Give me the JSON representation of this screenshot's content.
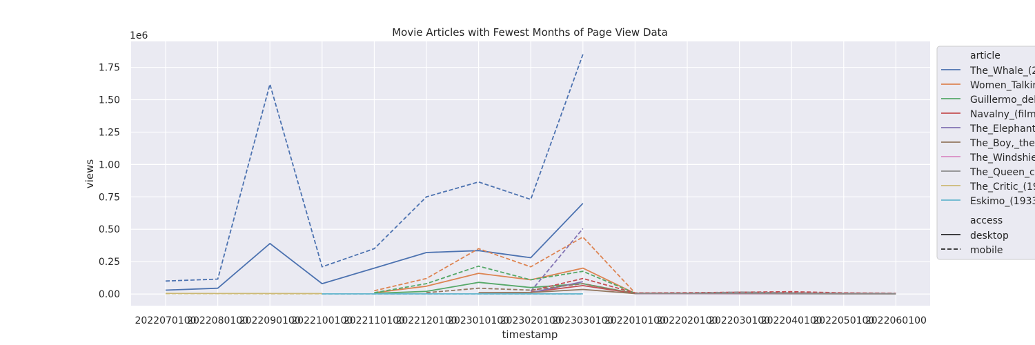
{
  "chart_data": {
    "type": "line",
    "title": "Movie Articles with Fewest Months of Page View Data",
    "xlabel": "timestamp",
    "ylabel": "views",
    "y_multiplier_label": "1e6",
    "categories": [
      "2022070100",
      "2022080100",
      "2022090100",
      "2022100100",
      "2022110100",
      "2022120100",
      "2023010100",
      "2023020100",
      "2023030100",
      "2022010100",
      "2022020100",
      "2022030100",
      "2022040100",
      "2022050100",
      "2022060100"
    ],
    "yticks": [
      "0.00",
      "0.25",
      "0.50",
      "0.75",
      "1.00",
      "1.25",
      "1.50",
      "1.75"
    ],
    "ytick_values": [
      0,
      250000,
      500000,
      750000,
      1000000,
      1250000,
      1500000,
      1750000
    ],
    "ylim": [
      -90000,
      1950000
    ],
    "grid": true,
    "legend_placement": "outside-right",
    "legend": {
      "hue_title": "article",
      "style_title": "access",
      "articles": [
        {
          "name": "The_Whale_(2",
          "color": "#4c72b0"
        },
        {
          "name": "Women_Talkir",
          "color": "#dd8452"
        },
        {
          "name": "Guillermo_del",
          "color": "#55a868"
        },
        {
          "name": "Navalny_(film",
          "color": "#c44e52"
        },
        {
          "name": "The_Elephant",
          "color": "#8172b3"
        },
        {
          "name": "The_Boy,_the",
          "color": "#937860"
        },
        {
          "name": "The_Windshie",
          "color": "#da8bc3"
        },
        {
          "name": "The_Queen_c",
          "color": "#8c8c8c"
        },
        {
          "name": "The_Critic_(19",
          "color": "#ccb974"
        },
        {
          "name": "Eskimo_(1933",
          "color": "#64b5cd"
        }
      ],
      "access": [
        {
          "name": "desktop",
          "dash": "solid"
        },
        {
          "name": "mobile",
          "dash": "dashed"
        }
      ]
    },
    "series": [
      {
        "article": "The_Whale_(2",
        "access": "desktop",
        "color": "#4c72b0",
        "dash": false,
        "points": [
          [
            0,
            30000
          ],
          [
            1,
            45000
          ],
          [
            2,
            390000
          ],
          [
            3,
            80000
          ],
          [
            4,
            200000
          ],
          [
            5,
            320000
          ],
          [
            6,
            335000
          ],
          [
            7,
            280000
          ],
          [
            8,
            700000
          ]
        ]
      },
      {
        "article": "The_Whale_(2",
        "access": "mobile",
        "color": "#4c72b0",
        "dash": true,
        "points": [
          [
            0,
            100000
          ],
          [
            1,
            115000
          ],
          [
            2,
            1620000
          ],
          [
            3,
            210000
          ],
          [
            4,
            350000
          ],
          [
            5,
            750000
          ],
          [
            6,
            865000
          ],
          [
            7,
            730000
          ],
          [
            8,
            1850000
          ]
        ]
      },
      {
        "article": "Women_Talkir",
        "access": "desktop",
        "color": "#dd8452",
        "dash": false,
        "points": [
          [
            4,
            10000
          ],
          [
            5,
            60000
          ],
          [
            6,
            160000
          ],
          [
            7,
            110000
          ],
          [
            8,
            200000
          ],
          [
            9,
            5000
          ],
          [
            10,
            4000
          ],
          [
            11,
            3000
          ],
          [
            12,
            3000
          ],
          [
            13,
            2000
          ],
          [
            14,
            2000
          ]
        ]
      },
      {
        "article": "Women_Talkir",
        "access": "mobile",
        "color": "#dd8452",
        "dash": true,
        "points": [
          [
            4,
            25000
          ],
          [
            5,
            120000
          ],
          [
            6,
            350000
          ],
          [
            7,
            210000
          ],
          [
            8,
            440000
          ],
          [
            9,
            8000
          ],
          [
            10,
            6000
          ],
          [
            11,
            5000
          ],
          [
            12,
            4000
          ],
          [
            13,
            4000
          ],
          [
            14,
            3000
          ]
        ]
      },
      {
        "article": "Guillermo_del",
        "access": "desktop",
        "color": "#55a868",
        "dash": false,
        "points": [
          [
            4,
            5000
          ],
          [
            5,
            20000
          ],
          [
            6,
            90000
          ],
          [
            7,
            50000
          ],
          [
            8,
            80000
          ],
          [
            9,
            4000
          ],
          [
            10,
            3000
          ],
          [
            11,
            3000
          ],
          [
            12,
            2000
          ],
          [
            13,
            2000
          ],
          [
            14,
            2000
          ]
        ]
      },
      {
        "article": "Guillermo_del",
        "access": "mobile",
        "color": "#55a868",
        "dash": true,
        "points": [
          [
            4,
            10000
          ],
          [
            5,
            80000
          ],
          [
            6,
            215000
          ],
          [
            7,
            110000
          ],
          [
            8,
            175000
          ],
          [
            9,
            6000
          ],
          [
            10,
            5000
          ],
          [
            11,
            4000
          ],
          [
            12,
            3000
          ],
          [
            13,
            3000
          ],
          [
            14,
            2000
          ]
        ]
      },
      {
        "article": "Navalny_(film",
        "access": "desktop",
        "color": "#c44e52",
        "dash": false,
        "points": [
          [
            7,
            15000
          ],
          [
            8,
            65000
          ],
          [
            9,
            5000
          ],
          [
            10,
            6000
          ],
          [
            11,
            8000
          ],
          [
            12,
            9000
          ],
          [
            13,
            5000
          ],
          [
            14,
            4000
          ]
        ]
      },
      {
        "article": "Navalny_(film",
        "access": "mobile",
        "color": "#c44e52",
        "dash": true,
        "points": [
          [
            7,
            25000
          ],
          [
            8,
            120000
          ],
          [
            9,
            8000
          ],
          [
            10,
            10000
          ],
          [
            11,
            14000
          ],
          [
            12,
            18000
          ],
          [
            13,
            9000
          ],
          [
            14,
            6000
          ]
        ]
      },
      {
        "article": "The_Elephant",
        "access": "desktop",
        "color": "#8172b3",
        "dash": false,
        "points": [
          [
            7,
            10000
          ],
          [
            8,
            95000
          ]
        ]
      },
      {
        "article": "The_Elephant",
        "access": "mobile",
        "color": "#8172b3",
        "dash": true,
        "points": [
          [
            7,
            20000
          ],
          [
            8,
            505000
          ]
        ]
      },
      {
        "article": "The_Boy,_the",
        "access": "desktop",
        "color": "#937860",
        "dash": false,
        "points": [
          [
            6,
            10000
          ],
          [
            7,
            12000
          ],
          [
            8,
            35000
          ],
          [
            9,
            3000
          ],
          [
            10,
            3000
          ],
          [
            11,
            2000
          ],
          [
            12,
            2000
          ],
          [
            13,
            2000
          ],
          [
            14,
            2000
          ]
        ]
      },
      {
        "article": "The_Boy,_the",
        "access": "mobile",
        "color": "#937860",
        "dash": true,
        "points": [
          [
            5,
            10000
          ],
          [
            6,
            45000
          ],
          [
            7,
            30000
          ],
          [
            8,
            80000
          ],
          [
            9,
            4000
          ],
          [
            10,
            4000
          ],
          [
            11,
            3000
          ],
          [
            12,
            3000
          ],
          [
            13,
            3000
          ],
          [
            14,
            3000
          ]
        ]
      },
      {
        "article": "The_Windshie",
        "access": "desktop",
        "color": "#da8bc3",
        "dash": false,
        "points": [
          [
            9,
            2000
          ],
          [
            10,
            2000
          ],
          [
            11,
            2000
          ],
          [
            12,
            2000
          ],
          [
            13,
            2000
          ],
          [
            14,
            2000
          ]
        ]
      },
      {
        "article": "The_Windshie",
        "access": "mobile",
        "color": "#da8bc3",
        "dash": true,
        "points": [
          [
            9,
            3000
          ],
          [
            10,
            4000
          ],
          [
            11,
            12000
          ],
          [
            12,
            8000
          ],
          [
            13,
            4000
          ],
          [
            14,
            3000
          ]
        ]
      },
      {
        "article": "The_Queen_c",
        "access": "desktop",
        "color": "#8c8c8c",
        "dash": false,
        "points": [
          [
            9,
            3000
          ],
          [
            10,
            3000
          ],
          [
            11,
            4000
          ],
          [
            12,
            3000
          ],
          [
            13,
            2000
          ],
          [
            14,
            2000
          ]
        ]
      },
      {
        "article": "The_Queen_c",
        "access": "mobile",
        "color": "#8c8c8c",
        "dash": true,
        "points": [
          [
            9,
            5000
          ],
          [
            10,
            6000
          ],
          [
            11,
            15000
          ],
          [
            12,
            9000
          ],
          [
            13,
            5000
          ],
          [
            14,
            4000
          ]
        ]
      },
      {
        "article": "The_Critic_(19",
        "access": "desktop",
        "color": "#ccb974",
        "dash": false,
        "points": [
          [
            0,
            5000
          ],
          [
            1,
            4000
          ],
          [
            2,
            4000
          ],
          [
            3,
            3000
          ]
        ]
      },
      {
        "article": "The_Critic_(19",
        "access": "mobile",
        "color": "#ccb974",
        "dash": true,
        "points": [
          [
            0,
            3000
          ],
          [
            1,
            3000
          ],
          [
            2,
            2000
          ],
          [
            3,
            2000
          ]
        ]
      },
      {
        "article": "Eskimo_(1933",
        "access": "desktop",
        "color": "#64b5cd",
        "dash": false,
        "points": [
          [
            3,
            1000
          ],
          [
            4,
            1000
          ],
          [
            5,
            1000
          ],
          [
            6,
            1000
          ],
          [
            7,
            1000
          ],
          [
            8,
            1000
          ]
        ]
      },
      {
        "article": "Eskimo_(1933",
        "access": "mobile",
        "color": "#64b5cd",
        "dash": true,
        "points": [
          [
            3,
            500
          ],
          [
            4,
            500
          ],
          [
            5,
            500
          ],
          [
            6,
            500
          ],
          [
            7,
            500
          ],
          [
            8,
            500
          ]
        ]
      }
    ]
  }
}
